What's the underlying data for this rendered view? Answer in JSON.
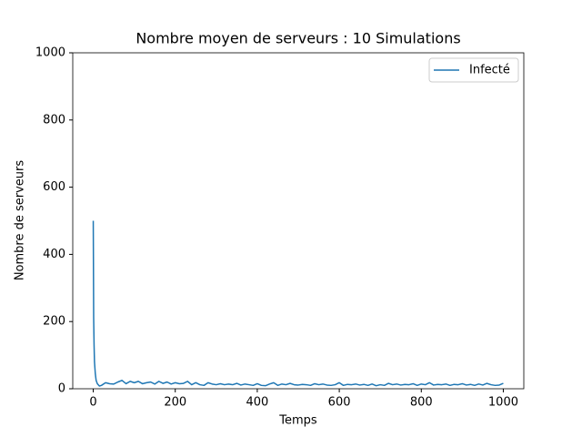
{
  "chart_data": {
    "type": "line",
    "title": "Nombre moyen de serveurs : 10 Simulations",
    "x_label": "Temps",
    "y_label": "Nombre de serveurs",
    "x": [
      0,
      1,
      2,
      3,
      5,
      7,
      10,
      15,
      20,
      30,
      40,
      50,
      60,
      70,
      80,
      90,
      100,
      110,
      120,
      130,
      140,
      150,
      160,
      170,
      180,
      190,
      200,
      210,
      220,
      230,
      240,
      250,
      260,
      270,
      280,
      290,
      300,
      310,
      320,
      330,
      340,
      350,
      360,
      370,
      380,
      390,
      400,
      410,
      420,
      430,
      440,
      450,
      460,
      470,
      480,
      490,
      500,
      510,
      520,
      530,
      540,
      550,
      560,
      570,
      580,
      590,
      600,
      610,
      620,
      630,
      640,
      650,
      660,
      670,
      680,
      690,
      700,
      710,
      720,
      730,
      740,
      750,
      760,
      770,
      780,
      790,
      800,
      810,
      820,
      830,
      840,
      850,
      860,
      870,
      880,
      890,
      900,
      910,
      920,
      930,
      940,
      950,
      960,
      970,
      980,
      990,
      1000
    ],
    "series": [
      {
        "name": "Infecté",
        "color": "#1f77b4",
        "values": [
          500,
          210,
          130,
          80,
          45,
          25,
          15,
          8,
          10,
          18,
          15,
          14,
          20,
          25,
          15,
          22,
          18,
          22,
          15,
          18,
          20,
          14,
          22,
          16,
          20,
          14,
          18,
          15,
          16,
          22,
          12,
          18,
          12,
          10,
          18,
          14,
          12,
          15,
          12,
          14,
          12,
          16,
          11,
          14,
          12,
          10,
          15,
          10,
          9,
          14,
          18,
          10,
          14,
          12,
          16,
          12,
          11,
          13,
          12,
          10,
          15,
          12,
          14,
          11,
          10,
          12,
          18,
          10,
          13,
          12,
          14,
          11,
          13,
          10,
          14,
          9,
          12,
          10,
          16,
          12,
          14,
          11,
          13,
          12,
          15,
          10,
          14,
          12,
          18,
          11,
          13,
          12,
          14,
          10,
          13,
          12,
          15,
          11,
          13,
          10,
          14,
          11,
          16,
          12,
          10,
          11,
          16
        ]
      }
    ],
    "xlim": [
      -50,
      1050
    ],
    "xticks": [
      0,
      200,
      400,
      600,
      800,
      1000
    ],
    "ylim": [
      0,
      1000
    ],
    "yticks": [
      0,
      200,
      400,
      600,
      800,
      1000
    ],
    "legend": "upper right"
  }
}
